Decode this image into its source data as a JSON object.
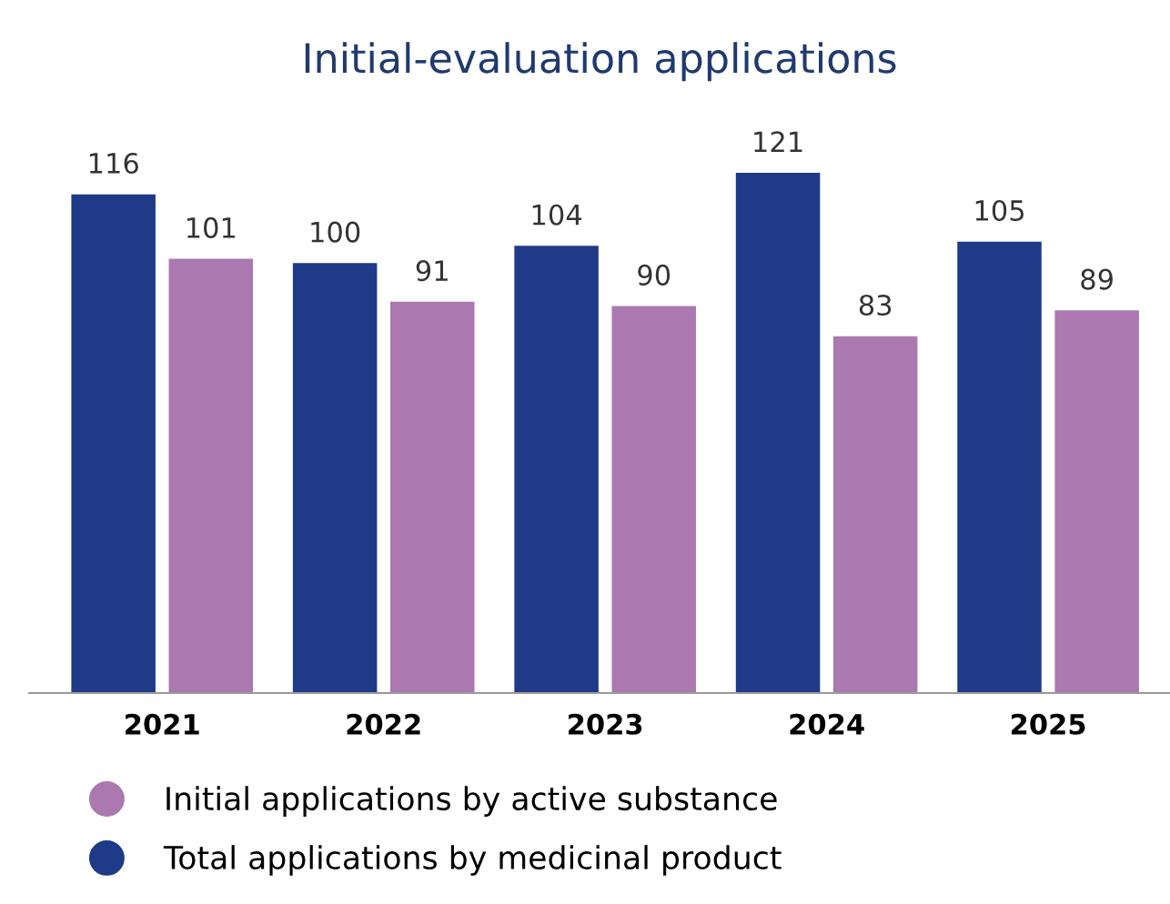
{
  "chart_data": {
    "type": "bar",
    "title": "Initial-evaluation applications",
    "categories": [
      "2021",
      "2022",
      "2023",
      "2024",
      "2025"
    ],
    "series": [
      {
        "name": "Total applications by medicinal product",
        "color": "#1f3a87",
        "values": [
          116,
          100,
          104,
          121,
          105
        ]
      },
      {
        "name": "Initial applications by active substance",
        "color": "#ab78b0",
        "values": [
          101,
          91,
          90,
          83,
          89
        ]
      }
    ],
    "data_labels": true,
    "legend": "bottom",
    "grid": false
  }
}
